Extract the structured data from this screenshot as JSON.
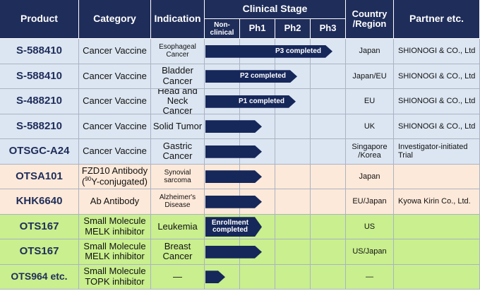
{
  "header": {
    "product": "Product",
    "category": "Category",
    "indication": "Indication",
    "clinical_stage": "Clinical Stage",
    "stages": [
      "Non-clinical",
      "Ph1",
      "Ph2",
      "Ph3"
    ],
    "country": "Country /Region",
    "partner": "Partner etc."
  },
  "rows": [
    {
      "product": "S-588410",
      "category": "Cancer Vaccine",
      "indication": "Esophageal Cancer",
      "stage_label": "P3 completed",
      "country": "Japan",
      "partner": "SHIONOGI & CO., Ltd"
    },
    {
      "product": "S-588410",
      "category": "Cancer Vaccine",
      "indication": "Bladder Cancer",
      "stage_label": "P2 completed",
      "country": "Japan/EU",
      "partner": "SHIONOGI & CO., Ltd"
    },
    {
      "product": "S-488210",
      "category": "Cancer Vaccine",
      "indication": "Head and Neck Cancer",
      "stage_label": "P1 completed",
      "country": "EU",
      "partner": "SHIONOGI & CO., Ltd"
    },
    {
      "product": "S-588210",
      "category": "Cancer Vaccine",
      "indication": "Solid Tumor",
      "country": "UK",
      "partner": "SHIONOGI & CO., Ltd"
    },
    {
      "product": "OTSGC-A24",
      "category": "Cancer Vaccine",
      "indication": "Gastric Cancer",
      "country": "Singapore /Korea",
      "partner": "Investigator-initiated Trial"
    },
    {
      "product": "OTSA101",
      "category": "FZD10 Antibody (",
      "category_sup": "90",
      "category_rest": "Y-conjugated)",
      "indication": "Synovial sarcoma",
      "country": "Japan"
    },
    {
      "product": "KHK6640",
      "category": "Ab Antibody",
      "indication": "Alzheimer's Disease",
      "country": "EU/Japan",
      "partner": "Kyowa Kirin Co., Ltd."
    },
    {
      "product": "OTS167",
      "category": "Small Molecule MELK inhibitor",
      "indication": "Leukemia",
      "stage_label": "Enrollment completed",
      "country": "US"
    },
    {
      "product": "OTS167",
      "category": "Small Molecule MELK inhibitor",
      "indication": "Breast Cancer",
      "country": "US/Japan"
    },
    {
      "product": "OTS964 etc.",
      "category": "Small Molecule TOPK inhibitor",
      "indication": "—",
      "country": "—"
    }
  ]
}
